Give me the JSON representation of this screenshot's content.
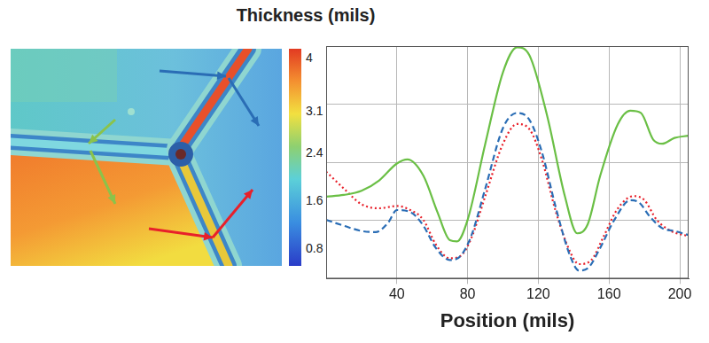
{
  "chart_data": {
    "type": "line",
    "xlabel": "Position (mils)",
    "xlim": [
      0,
      205
    ],
    "xticks": [
      40,
      80,
      120,
      160,
      200
    ],
    "ylim": [
      0,
      4
    ],
    "yticks": [
      1,
      2,
      3
    ],
    "grid": true,
    "tick_labels": "x",
    "series": [
      {
        "color": "#6abf45",
        "line_style": "solid",
        "x": [
          0,
          10,
          20,
          30,
          40,
          46,
          55,
          63,
          70,
          74,
          80,
          90,
          100,
          108,
          115,
          125,
          135,
          142,
          148,
          155,
          165,
          172,
          178,
          185,
          190,
          197,
          205
        ],
        "values": [
          1.41,
          1.44,
          1.51,
          1.69,
          1.98,
          2.05,
          1.77,
          1.14,
          0.66,
          0.64,
          1.01,
          2.32,
          3.55,
          3.98,
          3.84,
          2.8,
          1.42,
          0.78,
          0.94,
          1.77,
          2.66,
          2.89,
          2.85,
          2.39,
          2.32,
          2.42,
          2.46
        ]
      },
      {
        "color": "#2a6db5",
        "line_style": "dashed",
        "x": [
          0,
          10,
          20,
          28,
          35,
          40,
          48,
          55,
          62,
          70,
          76,
          82,
          90,
          100,
          108,
          115,
          122,
          130,
          138,
          143,
          148,
          155,
          163,
          172,
          177,
          183,
          190,
          197,
          205
        ],
        "values": [
          1.01,
          0.91,
          0.82,
          0.8,
          0.96,
          1.18,
          1.14,
          0.91,
          0.53,
          0.32,
          0.39,
          0.73,
          1.55,
          2.59,
          2.85,
          2.73,
          2.18,
          1.21,
          0.39,
          0.14,
          0.18,
          0.53,
          1.01,
          1.35,
          1.31,
          1.07,
          0.87,
          0.82,
          0.75
        ]
      },
      {
        "color": "#e8202a",
        "line_style": "dotted",
        "x": [
          0,
          10,
          20,
          30,
          40,
          47,
          55,
          62,
          70,
          76,
          82,
          90,
          100,
          108,
          115,
          122,
          130,
          138,
          143,
          150,
          157,
          165,
          174,
          180,
          187,
          195,
          205
        ],
        "values": [
          1.84,
          1.55,
          1.28,
          1.21,
          1.25,
          1.19,
          1.01,
          0.59,
          0.35,
          0.39,
          0.69,
          1.42,
          2.32,
          2.66,
          2.57,
          2.05,
          1.14,
          0.46,
          0.25,
          0.32,
          0.73,
          1.21,
          1.42,
          1.35,
          1.01,
          0.82,
          0.73
        ]
      }
    ]
  },
  "colorbar": {
    "title": "Thickness (mils)",
    "range": [
      0.5,
      4.15
    ],
    "ticks": [
      0.8,
      1.6,
      2.4,
      3.1,
      4
    ]
  }
}
